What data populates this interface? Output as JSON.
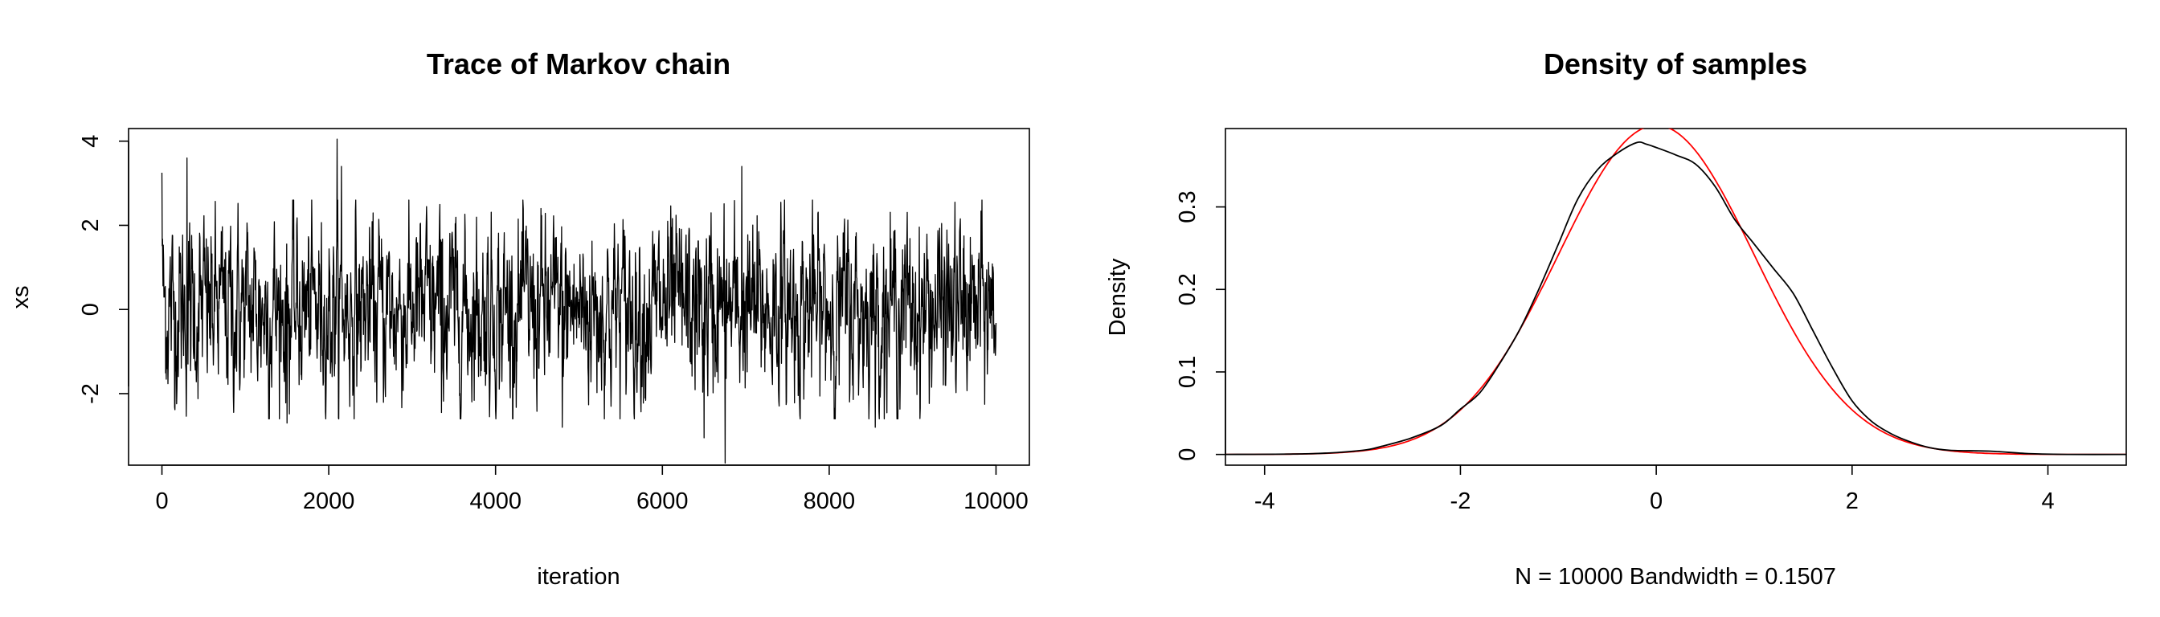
{
  "chart_data": [
    {
      "type": "line",
      "title": "Trace of Markov chain",
      "xlabel": "iteration",
      "ylabel": "xs",
      "xlim": [
        -400,
        10400
      ],
      "ylim": [
        -3.7,
        4.3
      ],
      "xticks": [
        0,
        2000,
        4000,
        6000,
        8000,
        10000
      ],
      "yticks": [
        -2,
        0,
        2,
        4
      ],
      "grid": false,
      "series": [
        {
          "color": "#000000",
          "n": 10000,
          "start": 3.25,
          "seed": 12345,
          "phi": 0.55,
          "spikes": [
            {
              "x": 300,
              "y": 3.6
            },
            {
              "x": 2100,
              "y": 4.05
            },
            {
              "x": 2150,
              "y": 3.4
            },
            {
              "x": 6950,
              "y": 3.4
            },
            {
              "x": 1500,
              "y": -2.7
            },
            {
              "x": 6750,
              "y": -3.65
            },
            {
              "x": 6500,
              "y": -3.05
            },
            {
              "x": 8550,
              "y": -2.8
            },
            {
              "x": 4800,
              "y": -2.8
            },
            {
              "x": 3350,
              "y": -2.45
            }
          ]
        }
      ]
    },
    {
      "type": "line",
      "title": "Density of samples",
      "xlabel": "N = 10000   Bandwidth = 0.1507",
      "ylabel": "Density",
      "xlim": [
        -4.4,
        4.8
      ],
      "ylim": [
        -0.013,
        0.395
      ],
      "xticks": [
        -4,
        -2,
        0,
        2,
        4
      ],
      "yticks": [
        0.0,
        0.1,
        0.2,
        0.3
      ],
      "grid": false,
      "series": [
        {
          "color": "#000000",
          "x": [
            -4.4,
            -3.5,
            -3.0,
            -2.8,
            -2.5,
            -2.2,
            -2.0,
            -1.8,
            -1.6,
            -1.4,
            -1.2,
            -1.0,
            -0.8,
            -0.6,
            -0.4,
            -0.2,
            -0.1,
            0.0,
            0.2,
            0.4,
            0.6,
            0.8,
            1.0,
            1.2,
            1.4,
            1.6,
            1.8,
            2.0,
            2.2,
            2.4,
            2.6,
            2.8,
            3.0,
            3.4,
            3.8,
            4.2,
            4.8
          ],
          "y": [
            0.0,
            0.001,
            0.005,
            0.01,
            0.02,
            0.035,
            0.055,
            0.075,
            0.11,
            0.15,
            0.2,
            0.255,
            0.31,
            0.345,
            0.365,
            0.378,
            0.376,
            0.372,
            0.363,
            0.352,
            0.325,
            0.285,
            0.255,
            0.225,
            0.195,
            0.15,
            0.105,
            0.065,
            0.04,
            0.025,
            0.015,
            0.008,
            0.005,
            0.004,
            0.001,
            0.0,
            0.0
          ]
        },
        {
          "color": "#ff0000",
          "function": "normal",
          "mean": 0,
          "sd": 1
        }
      ]
    }
  ]
}
